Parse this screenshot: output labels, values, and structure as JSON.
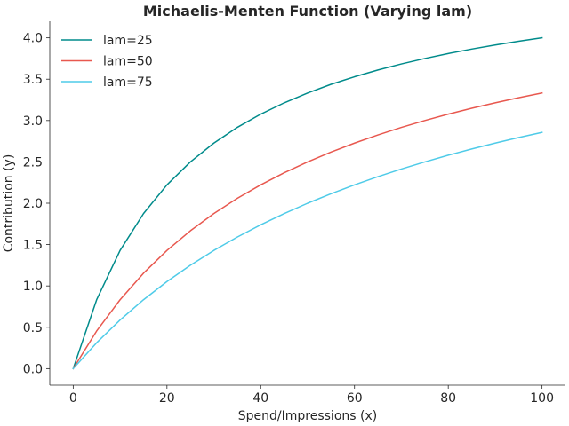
{
  "chart_data": {
    "type": "line",
    "title": "Michaelis-Menten Function (Varying lam)",
    "xlabel": "Spend/Impressions (x)",
    "ylabel": "Contribution (y)",
    "xlim": [
      -5,
      105
    ],
    "ylim": [
      -0.2,
      4.2
    ],
    "xticks": [
      0,
      20,
      40,
      60,
      80,
      100
    ],
    "xtick_labels": [
      "0",
      "20",
      "40",
      "60",
      "80",
      "100"
    ],
    "yticks": [
      0.0,
      0.5,
      1.0,
      1.5,
      2.0,
      2.5,
      3.0,
      3.5,
      4.0
    ],
    "ytick_labels": [
      "0.0",
      "0.5",
      "1.0",
      "1.5",
      "2.0",
      "2.5",
      "3.0",
      "3.5",
      "4.0"
    ],
    "grid": false,
    "legend_position": "top-left",
    "x": [
      0,
      5,
      10,
      15,
      20,
      25,
      30,
      35,
      40,
      45,
      50,
      55,
      60,
      65,
      70,
      75,
      80,
      85,
      90,
      95,
      100
    ],
    "series": [
      {
        "name": "lam=25",
        "color": "#008b8b",
        "values": [
          0.0,
          0.833,
          1.429,
          1.875,
          2.222,
          2.5,
          2.727,
          2.917,
          3.077,
          3.214,
          3.333,
          3.438,
          3.529,
          3.611,
          3.684,
          3.75,
          3.81,
          3.864,
          3.913,
          3.958,
          4.0
        ]
      },
      {
        "name": "lam=50",
        "color": "#e8584f",
        "values": [
          0.0,
          0.455,
          0.833,
          1.154,
          1.429,
          1.667,
          1.875,
          2.059,
          2.222,
          2.368,
          2.5,
          2.619,
          2.727,
          2.826,
          2.917,
          3.0,
          3.077,
          3.148,
          3.214,
          3.276,
          3.333
        ]
      },
      {
        "name": "lam=75",
        "color": "#4fcbe8",
        "values": [
          0.0,
          0.313,
          0.588,
          0.833,
          1.053,
          1.25,
          1.429,
          1.591,
          1.739,
          1.875,
          2.0,
          2.115,
          2.222,
          2.321,
          2.414,
          2.5,
          2.581,
          2.656,
          2.727,
          2.794,
          2.857
        ]
      }
    ]
  }
}
